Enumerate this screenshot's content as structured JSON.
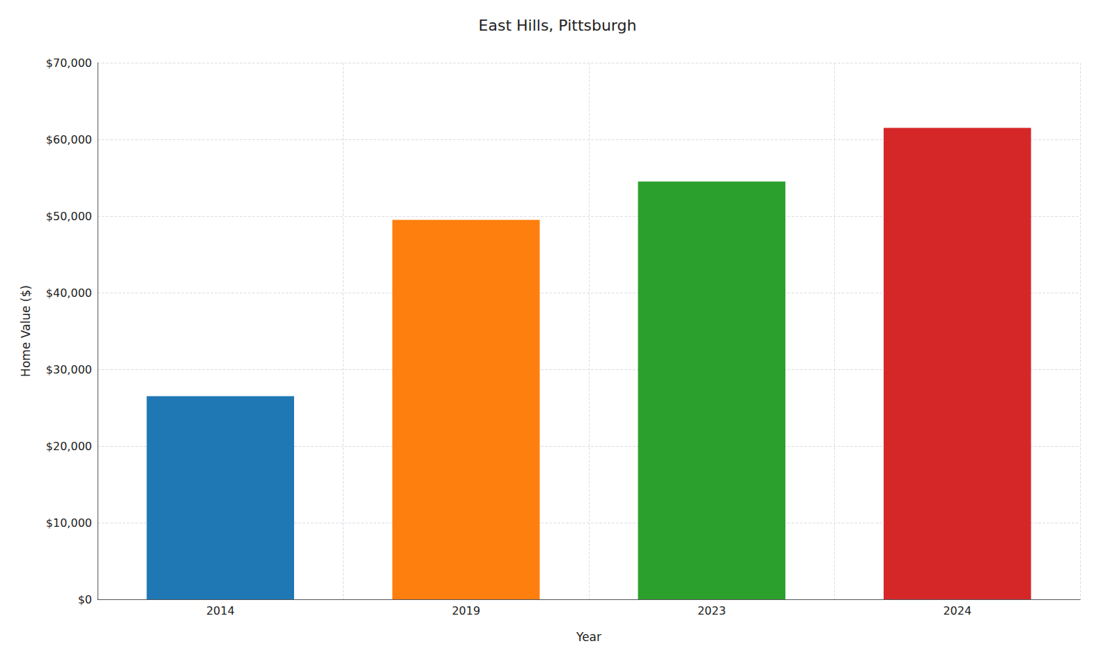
{
  "chart_data": {
    "type": "bar",
    "title": "East Hills, Pittsburgh",
    "xlabel": "Year",
    "ylabel": "Home Value ($)",
    "categories": [
      "2014",
      "2019",
      "2023",
      "2024"
    ],
    "values": [
      26500,
      49500,
      54500,
      61500
    ],
    "colors": [
      "#1f77b4",
      "#ff7f0e",
      "#2ca02c",
      "#d62728"
    ],
    "ylim": [
      0,
      70000
    ],
    "yticks": [
      {
        "value": 0,
        "label": "$0"
      },
      {
        "value": 10000,
        "label": "$10,000"
      },
      {
        "value": 20000,
        "label": "$20,000"
      },
      {
        "value": 30000,
        "label": "$30,000"
      },
      {
        "value": 40000,
        "label": "$40,000"
      },
      {
        "value": 50000,
        "label": "$50,000"
      },
      {
        "value": 60000,
        "label": "$60,000"
      },
      {
        "value": 70000,
        "label": "$70,000"
      }
    ],
    "grid": true
  }
}
